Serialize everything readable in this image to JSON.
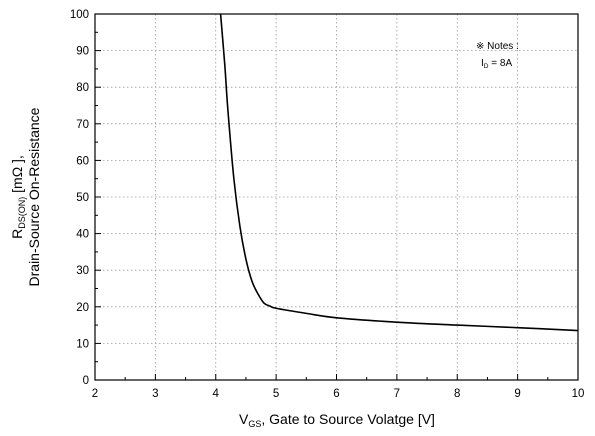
{
  "chart_data": {
    "type": "line",
    "xlabel_main": "V",
    "xlabel_sub": "GS",
    "xlabel_rest": ", Gate to Source Volatge [V]",
    "ylabel_main": "R",
    "ylabel_sub": "DS(ON)",
    "ylabel_rest": " [mΩ ],",
    "ylabel_line2": "Drain-Source On-Resistance",
    "xlim": [
      2,
      10
    ],
    "ylim": [
      0,
      100
    ],
    "xticks": [
      2,
      3,
      4,
      5,
      6,
      7,
      8,
      9,
      10
    ],
    "yticks": [
      0,
      10,
      20,
      30,
      40,
      50,
      60,
      70,
      80,
      90,
      100
    ],
    "grid": true,
    "notes": {
      "title": "※ Notes :",
      "line_main": "I",
      "line_sub": "D",
      "line_rest": " = 8A"
    },
    "series": [
      {
        "x": [
          4.08,
          4.15,
          4.2,
          4.3,
          4.4,
          4.5,
          4.6,
          4.7,
          4.8,
          4.9,
          5.0,
          5.5,
          6.0,
          7.0,
          8.0,
          9.0,
          10.0
        ],
        "y": [
          100,
          86,
          74,
          55,
          42,
          33,
          27,
          23.5,
          21,
          20.2,
          19.6,
          18.2,
          17.0,
          15.8,
          15.0,
          14.3,
          13.5
        ]
      }
    ]
  }
}
